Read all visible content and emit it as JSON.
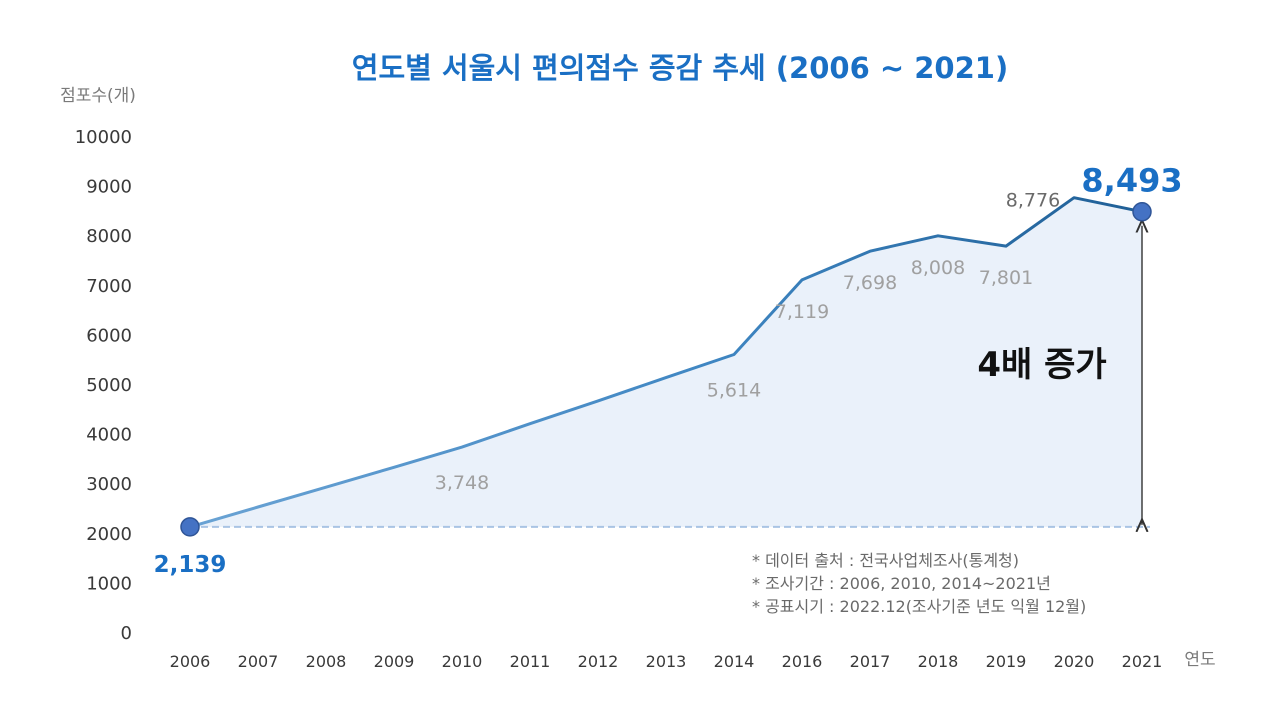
{
  "chart_data": {
    "type": "area",
    "title": "연도별 서울시 편의점수 증감 추세 (2006 ~ 2021)",
    "ylabel": "점포수(개)",
    "xlabel": "연도",
    "ylim": [
      0,
      10000
    ],
    "yticks": [
      "0",
      "1000",
      "2000",
      "3000",
      "4000",
      "5000",
      "6000",
      "7000",
      "8000",
      "9000",
      "10000"
    ],
    "x": [
      "2006",
      "2007",
      "2008",
      "2009",
      "2010",
      "2011",
      "2012",
      "2013",
      "2014",
      "2016",
      "2017",
      "2018",
      "2019",
      "2020",
      "2021"
    ],
    "series": [
      {
        "name": "편의점수",
        "values": [
          2139,
          2540,
          2940,
          3340,
          3748,
          4220,
          4680,
          5150,
          5614,
          7119,
          7698,
          8008,
          7801,
          8776,
          8493
        ]
      }
    ],
    "data_labels": [
      {
        "year": "2006",
        "text": "2,139"
      },
      {
        "year": "2010",
        "text": "3,748"
      },
      {
        "year": "2014",
        "text": "5,614"
      },
      {
        "year": "2016",
        "text": "7,119"
      },
      {
        "year": "2017",
        "text": "7,698"
      },
      {
        "year": "2018",
        "text": "8,008"
      },
      {
        "year": "2019",
        "text": "7,801"
      },
      {
        "year": "2020",
        "text": "8,776"
      },
      {
        "year": "2021",
        "text": "8,493"
      }
    ],
    "annotation": "4배 증가",
    "notes": [
      "* 데이터 출처 : 전국사업체조사(통계청)",
      "* 조사기간 : 2006, 2010, 2014~2021년",
      "* 공표시기 : 2022.12(조사기준 년도 익월 12월)"
    ],
    "colors": {
      "line": "#1f5f96",
      "area": "#eaf1fa",
      "marker": "#4472c4",
      "accent": "#1a6fc4",
      "baseline": "#a9c4e4"
    }
  }
}
